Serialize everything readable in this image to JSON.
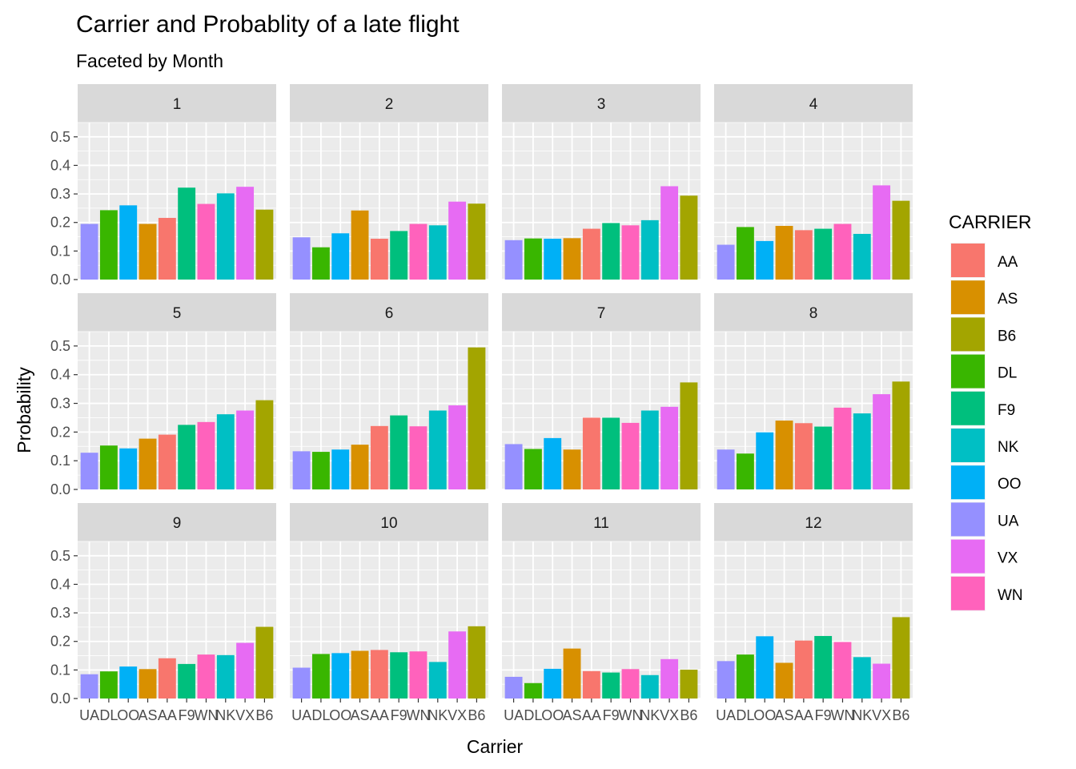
{
  "chart_data": {
    "type": "bar",
    "title": "Carrier and Probablity of a late flight",
    "subtitle": "Faceted by Month",
    "xlabel": "Carrier",
    "ylabel": "Probability",
    "ylim": [
      0,
      0.55
    ],
    "yticks": [
      "0.0",
      "0.1",
      "0.2",
      "0.3",
      "0.4",
      "0.5"
    ],
    "grid": true,
    "legend_position": "right",
    "legend_title": "CARRIER",
    "categories": [
      "UA",
      "DL",
      "OO",
      "AS",
      "AA",
      "F9",
      "WN",
      "NK",
      "VX",
      "B6"
    ],
    "legend": [
      {
        "key": "AA",
        "color": "#F8766D"
      },
      {
        "key": "AS",
        "color": "#D89000"
      },
      {
        "key": "B6",
        "color": "#A3A500"
      },
      {
        "key": "DL",
        "color": "#39B600"
      },
      {
        "key": "F9",
        "color": "#00BF7D"
      },
      {
        "key": "NK",
        "color": "#00BFC4"
      },
      {
        "key": "OO",
        "color": "#00B0F6"
      },
      {
        "key": "UA",
        "color": "#9590FF"
      },
      {
        "key": "VX",
        "color": "#E76BF3"
      },
      {
        "key": "WN",
        "color": "#FF62BC"
      }
    ],
    "facets": [
      {
        "label": "1",
        "values": [
          0.195,
          0.243,
          0.26,
          0.195,
          0.216,
          0.322,
          0.265,
          0.302,
          0.325,
          0.245
        ]
      },
      {
        "label": "2",
        "values": [
          0.148,
          0.113,
          0.162,
          0.242,
          0.143,
          0.17,
          0.195,
          0.19,
          0.273,
          0.266
        ]
      },
      {
        "label": "3",
        "values": [
          0.138,
          0.144,
          0.143,
          0.145,
          0.178,
          0.198,
          0.19,
          0.208,
          0.327,
          0.294
        ]
      },
      {
        "label": "4",
        "values": [
          0.122,
          0.184,
          0.135,
          0.188,
          0.173,
          0.178,
          0.195,
          0.16,
          0.33,
          0.276
        ]
      },
      {
        "label": "5",
        "values": [
          0.128,
          0.153,
          0.143,
          0.177,
          0.191,
          0.225,
          0.235,
          0.262,
          0.275,
          0.311
        ]
      },
      {
        "label": "6",
        "values": [
          0.133,
          0.131,
          0.139,
          0.156,
          0.221,
          0.258,
          0.22,
          0.275,
          0.293,
          0.495
        ]
      },
      {
        "label": "7",
        "values": [
          0.158,
          0.141,
          0.179,
          0.139,
          0.25,
          0.25,
          0.232,
          0.275,
          0.288,
          0.373
        ]
      },
      {
        "label": "8",
        "values": [
          0.139,
          0.125,
          0.199,
          0.24,
          0.231,
          0.219,
          0.285,
          0.265,
          0.332,
          0.376
        ]
      },
      {
        "label": "9",
        "values": [
          0.085,
          0.095,
          0.112,
          0.103,
          0.141,
          0.121,
          0.154,
          0.152,
          0.195,
          0.251
        ]
      },
      {
        "label": "10",
        "values": [
          0.108,
          0.156,
          0.159,
          0.167,
          0.17,
          0.162,
          0.165,
          0.128,
          0.235,
          0.253
        ]
      },
      {
        "label": "11",
        "values": [
          0.076,
          0.054,
          0.104,
          0.175,
          0.096,
          0.091,
          0.103,
          0.082,
          0.138,
          0.101
        ]
      },
      {
        "label": "12",
        "values": [
          0.131,
          0.154,
          0.218,
          0.125,
          0.203,
          0.219,
          0.198,
          0.145,
          0.122,
          0.285
        ]
      }
    ]
  }
}
